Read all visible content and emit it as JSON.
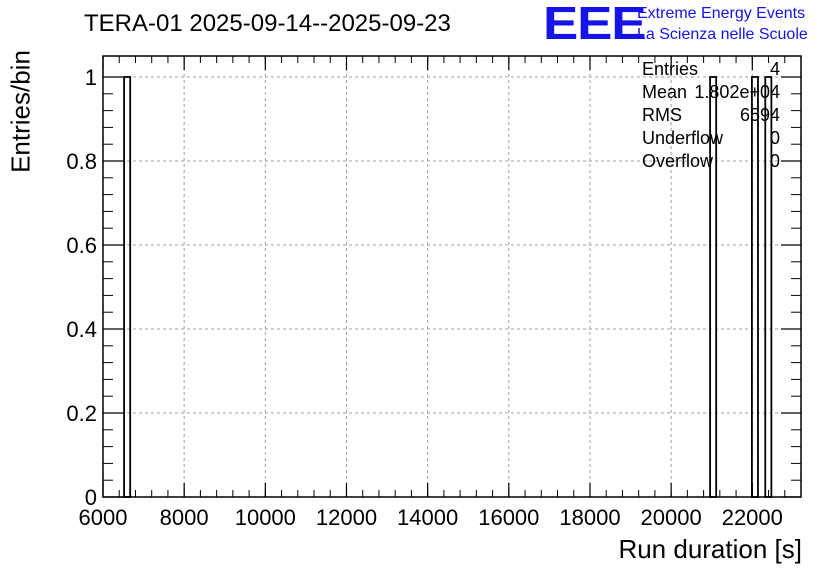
{
  "title": "TERA-01 2025-09-14--2025-09-23",
  "logo": {
    "mark": "EEE",
    "line1": "Extreme Energy Events",
    "line2": "La Scienza nelle Scuole",
    "color": "#1414e6"
  },
  "stats": [
    {
      "label": "Entries",
      "value": "4"
    },
    {
      "label": "Mean",
      "value": "1.802e+04"
    },
    {
      "label": "RMS",
      "value": "6594"
    },
    {
      "label": "Underflow",
      "value": "0"
    },
    {
      "label": "Overflow",
      "value": "0"
    }
  ],
  "chart_data": {
    "type": "bar",
    "title": "TERA-01 2025-09-14--2025-09-23",
    "xlabel": "Run duration [s]",
    "ylabel": "Entries/bin",
    "xlim": [
      6000,
      23200
    ],
    "ylim": [
      0,
      1.05
    ],
    "grid": true,
    "x_ticks": [
      "6000",
      "8000",
      "10000",
      "12000",
      "14000",
      "16000",
      "18000",
      "20000",
      "22000"
    ],
    "y_ticks": [
      "0",
      "0.2",
      "0.4",
      "0.6",
      "0.8",
      "1"
    ],
    "bin_width": 150,
    "bins": [
      {
        "x_low": 6520,
        "value": 1
      },
      {
        "x_low": 20960,
        "value": 1
      },
      {
        "x_low": 21990,
        "value": 1
      },
      {
        "x_low": 22320,
        "value": 1
      }
    ]
  }
}
